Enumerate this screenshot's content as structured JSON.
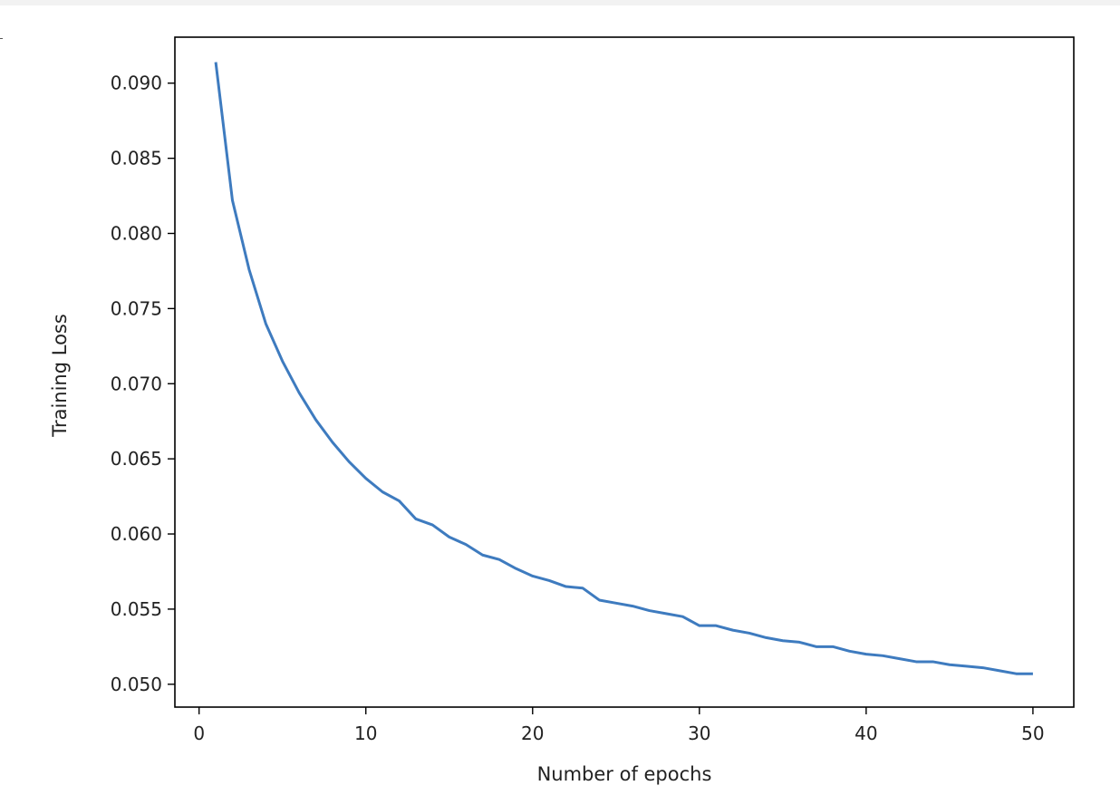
{
  "chart_data": {
    "type": "line",
    "title": "",
    "xlabel": "Number of epochs",
    "ylabel": "Training Loss",
    "xlim": [
      -1.45,
      52.45
    ],
    "ylim": [
      0.04848,
      0.09306
    ],
    "xticks": [
      0,
      10,
      20,
      30,
      40,
      50
    ],
    "xtick_labels": [
      "0",
      "10",
      "20",
      "30",
      "40",
      "50"
    ],
    "yticks": [
      0.05,
      0.055,
      0.06,
      0.065,
      0.07,
      0.075,
      0.08,
      0.085,
      0.09
    ],
    "ytick_labels": [
      "0.050",
      "0.055",
      "0.060",
      "0.065",
      "0.070",
      "0.075",
      "0.080",
      "0.085",
      "0.090"
    ],
    "grid": false,
    "legend": "none",
    "series": [
      {
        "color": "#3e7bbf",
        "x": [
          1,
          2,
          3,
          4,
          5,
          6,
          7,
          8,
          9,
          10,
          11,
          12,
          13,
          14,
          15,
          16,
          17,
          18,
          19,
          20,
          21,
          22,
          23,
          24,
          25,
          26,
          27,
          28,
          29,
          30,
          31,
          32,
          33,
          34,
          35,
          36,
          37,
          38,
          39,
          40,
          41,
          42,
          43,
          44,
          45,
          46,
          47,
          48,
          49,
          50
        ],
        "y": [
          0.0914,
          0.0822,
          0.0776,
          0.074,
          0.0715,
          0.0694,
          0.0676,
          0.0661,
          0.0648,
          0.0637,
          0.0628,
          0.0622,
          0.061,
          0.0606,
          0.0598,
          0.0593,
          0.0586,
          0.0583,
          0.0577,
          0.0572,
          0.0569,
          0.0565,
          0.0564,
          0.0556,
          0.0554,
          0.0552,
          0.0549,
          0.0547,
          0.0545,
          0.0539,
          0.0539,
          0.0536,
          0.0534,
          0.0531,
          0.0529,
          0.0528,
          0.0525,
          0.0525,
          0.0522,
          0.052,
          0.0519,
          0.0517,
          0.0515,
          0.0515,
          0.0513,
          0.0512,
          0.0511,
          0.0509,
          0.0507,
          0.0507
        ]
      }
    ]
  }
}
